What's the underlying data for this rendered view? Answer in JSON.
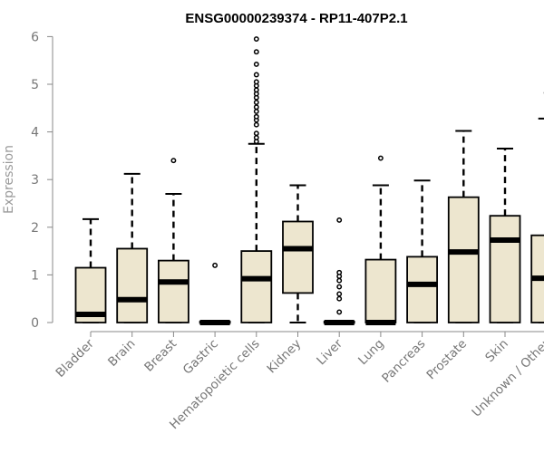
{
  "chart_data": {
    "type": "box",
    "title": "ENSG00000239374 - RP11-407P2.1",
    "ylabel": "Expression",
    "xlabel": "",
    "ylim": [
      0,
      6
    ],
    "yticks": [
      "0",
      "1",
      "2",
      "3",
      "4",
      "5",
      "6"
    ],
    "grid": false,
    "colors": {
      "box_fill": "#ede6cf",
      "box_stroke": "#000000",
      "axis": "#888888",
      "tick_label": "#777777"
    },
    "categories": [
      "Bladder",
      "Brain",
      "Breast",
      "Gastric",
      "Hematopoietic cells",
      "Kidney",
      "Liver",
      "Lung",
      "Pancreas",
      "Prostate",
      "Skin",
      "Unknown / Other"
    ],
    "boxes": [
      {
        "category": "Bladder",
        "whisker_low": 0,
        "q1": 0,
        "median": 0.17,
        "q3": 1.15,
        "whisker_high": 2.17,
        "outliers": []
      },
      {
        "category": "Brain",
        "whisker_low": 0,
        "q1": 0,
        "median": 0.48,
        "q3": 1.55,
        "whisker_high": 3.12,
        "outliers": []
      },
      {
        "category": "Breast",
        "whisker_low": 0,
        "q1": 0,
        "median": 0.85,
        "q3": 1.3,
        "whisker_high": 2.7,
        "outliers": [
          3.4
        ]
      },
      {
        "category": "Gastric",
        "whisker_low": 0,
        "q1": 0,
        "median": 0,
        "q3": 0.02,
        "whisker_high": 0.02,
        "outliers": [
          1.2
        ]
      },
      {
        "category": "Hematopoietic cells",
        "whisker_low": 0,
        "q1": 0,
        "median": 0.92,
        "q3": 1.5,
        "whisker_high": 3.75,
        "outliers": [
          3.8,
          3.88,
          3.97,
          4.15,
          4.25,
          4.32,
          4.43,
          4.52,
          4.62,
          4.72,
          4.8,
          4.88,
          4.97,
          5.05,
          5.2,
          5.42,
          5.68,
          5.95
        ]
      },
      {
        "category": "Kidney",
        "whisker_low": 0,
        "q1": 0.62,
        "median": 1.55,
        "q3": 2.12,
        "whisker_high": 2.88,
        "outliers": []
      },
      {
        "category": "Liver",
        "whisker_low": 0,
        "q1": 0,
        "median": 0,
        "q3": 0.02,
        "whisker_high": 0.02,
        "outliers": [
          0.22,
          0.5,
          0.6,
          0.75,
          0.88,
          0.97,
          1.05,
          2.15
        ]
      },
      {
        "category": "Lung",
        "whisker_low": 0,
        "q1": 0,
        "median": 0,
        "q3": 1.32,
        "whisker_high": 2.88,
        "outliers": [
          3.45
        ]
      },
      {
        "category": "Pancreas",
        "whisker_low": 0,
        "q1": 0,
        "median": 0.8,
        "q3": 1.38,
        "whisker_high": 2.98,
        "outliers": []
      },
      {
        "category": "Prostate",
        "whisker_low": 0,
        "q1": 0,
        "median": 1.48,
        "q3": 2.63,
        "whisker_high": 4.02,
        "outliers": []
      },
      {
        "category": "Skin",
        "whisker_low": 0,
        "q1": 0,
        "median": 1.73,
        "q3": 2.24,
        "whisker_high": 3.65,
        "outliers": []
      },
      {
        "category": "Unknown / Other",
        "whisker_low": 0,
        "q1": 0,
        "median": 0.93,
        "q3": 1.83,
        "whisker_high": 4.28,
        "outliers": [
          4.82
        ]
      }
    ]
  }
}
